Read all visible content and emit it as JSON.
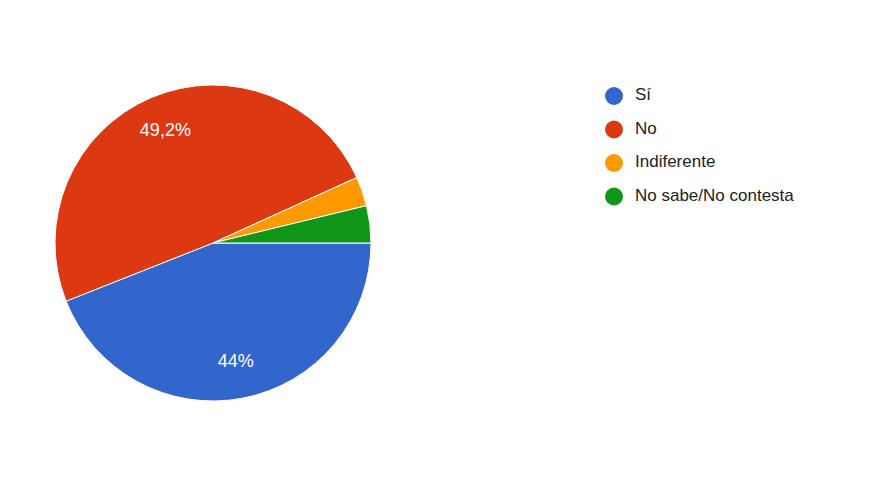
{
  "chart_data": {
    "type": "pie",
    "categories": [
      "Sí",
      "No",
      "Indiferente",
      "No sabe/No contesta"
    ],
    "values": [
      44,
      49.2,
      3.0,
      3.8
    ],
    "value_labels": [
      "44%",
      "49,2%",
      null,
      null
    ],
    "colors": [
      "#3366cc",
      "#dc3912",
      "#ff9900",
      "#109618"
    ],
    "data_labels": true,
    "legend": "top-right"
  }
}
